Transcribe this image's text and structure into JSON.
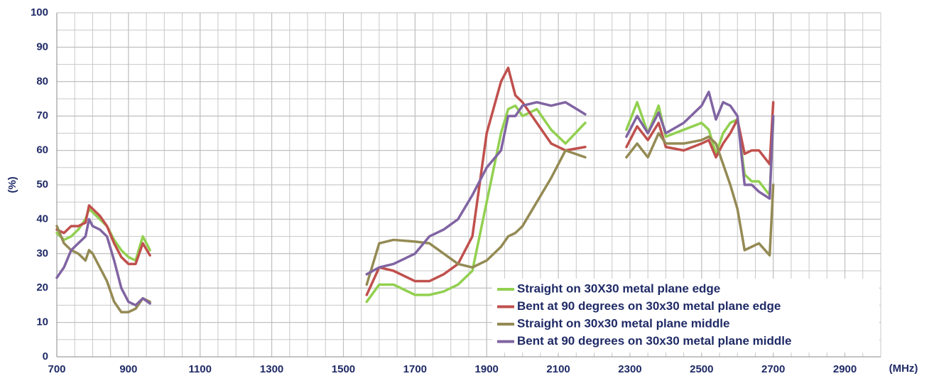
{
  "chart_data": {
    "type": "line",
    "x_unit_label": "(MHz)",
    "y_label": "(%)",
    "x": [
      700,
      720,
      740,
      760,
      780,
      790,
      800,
      820,
      840,
      860,
      880,
      900,
      920,
      940,
      960,
      null,
      1565,
      1600,
      1640,
      1700,
      1740,
      1780,
      1820,
      1860,
      1900,
      1940,
      1960,
      1980,
      2000,
      2040,
      2080,
      2120,
      2175,
      null,
      2290,
      2320,
      2350,
      2380,
      2400,
      2450,
      2500,
      2520,
      2540,
      2560,
      2580,
      2600,
      2620,
      2640,
      2660,
      2690,
      2700
    ],
    "series": [
      {
        "name": "Straight on 30X30 metal plane edge",
        "color": "#92d050",
        "values": [
          36,
          34,
          35,
          37,
          40,
          43,
          42,
          40,
          38,
          34,
          31,
          29,
          28,
          35,
          31,
          null,
          16,
          21,
          21,
          18,
          18,
          19,
          21,
          25,
          45,
          65,
          72,
          73,
          70,
          72,
          66,
          62,
          68,
          null,
          66,
          74,
          65,
          73,
          64,
          66,
          68,
          66,
          59,
          65,
          68,
          69,
          53,
          51,
          51,
          47,
          69
        ]
      },
      {
        "name": "Bent at 90 degrees on 30x30 metal plane edge",
        "color": "#c0504d",
        "values": [
          37,
          36,
          38,
          38,
          39,
          44,
          43,
          41,
          38,
          33,
          29,
          27,
          27,
          33,
          29.5,
          null,
          18,
          26,
          25,
          22,
          22,
          24,
          27,
          35,
          65,
          80,
          84,
          76,
          74,
          68,
          62,
          60,
          61,
          null,
          61,
          67,
          63,
          68,
          61,
          60,
          62,
          63,
          58,
          62,
          65,
          69,
          59,
          60,
          60,
          56,
          74
        ]
      },
      {
        "name": "Straight on 30x30 metal plane middle",
        "color": "#948a54",
        "values": [
          38,
          33,
          31,
          30,
          28,
          31,
          30,
          26,
          22,
          16,
          13,
          13,
          14,
          17,
          16,
          null,
          21,
          33,
          34,
          33.5,
          33,
          30,
          27,
          26,
          28,
          32,
          35,
          36,
          38,
          45,
          52,
          60,
          58,
          null,
          58,
          62,
          58,
          65,
          62,
          62,
          63,
          64,
          62,
          56,
          50,
          43,
          31,
          32,
          33,
          29.5,
          50
        ]
      },
      {
        "name": "Bent at 90 degrees on 30x30 metal plane middle",
        "color": "#8064a2",
        "values": [
          23,
          26,
          31,
          33,
          35,
          40,
          38,
          37,
          35,
          28,
          20,
          16,
          15,
          17,
          15.5,
          null,
          24,
          26,
          27,
          30,
          35,
          37,
          40,
          47,
          55,
          60,
          70,
          70,
          73,
          74,
          73,
          74,
          70.5,
          null,
          64,
          70,
          65,
          71,
          65,
          68,
          73,
          77,
          69,
          74,
          73,
          70,
          50,
          50,
          48,
          46,
          70
        ]
      }
    ],
    "xlim": [
      700,
      3000
    ],
    "xticks": [
      700,
      900,
      1100,
      1300,
      1500,
      1700,
      1900,
      2100,
      2300,
      2500,
      2700,
      2900
    ],
    "ylim": [
      0,
      100
    ],
    "yticks": [
      0,
      10,
      20,
      30,
      40,
      50,
      60,
      70,
      80,
      90,
      100
    ],
    "grid": true,
    "legend": "lower right"
  }
}
